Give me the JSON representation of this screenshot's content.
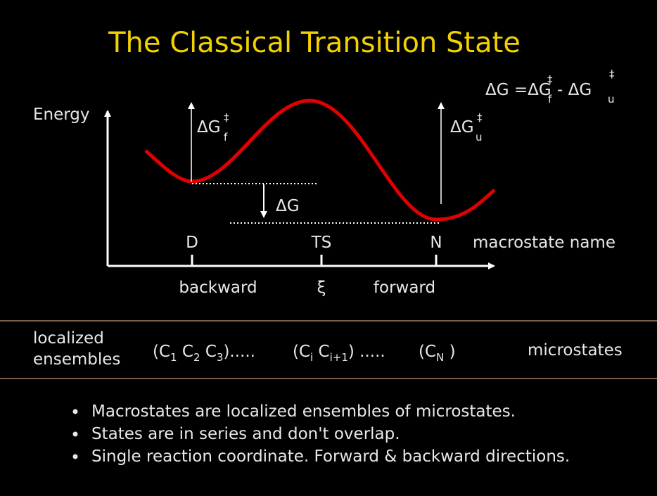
{
  "title": "The Classical Transition State",
  "equation": {
    "lhs": "ΔG =ΔG",
    "sup1": "‡",
    "sub1": "f",
    "minus": "- ΔG",
    "sup2": "‡",
    "sub2": "u"
  },
  "diagram": {
    "y_axis_label": "Energy",
    "barrier_forward": {
      "symbol": "ΔG",
      "sup": "‡",
      "sub": "f"
    },
    "barrier_unfolding": {
      "symbol": "ΔG",
      "sup": "‡",
      "sub": "u"
    },
    "delta_g": "ΔG",
    "macrostates": [
      "D",
      "TS",
      "N"
    ],
    "macrostate_caption": "macrostate name",
    "x_labels": [
      "backward",
      "ξ",
      "forward"
    ]
  },
  "ensembles": {
    "label_lines": [
      "localized",
      "ensembles"
    ],
    "groups": [
      [
        "(C",
        "1",
        " C",
        "2",
        " C",
        "3",
        ")....."
      ],
      [
        "(C",
        "i",
        " C",
        "i+1",
        ") ....."
      ],
      [
        "(C",
        "N",
        " )"
      ]
    ],
    "caption": "microstates"
  },
  "bullets": [
    "Macrostates are localized ensembles of microstates.",
    "States are in series and don't overlap.",
    "Single reaction coordinate.  Forward & backward directions."
  ]
}
